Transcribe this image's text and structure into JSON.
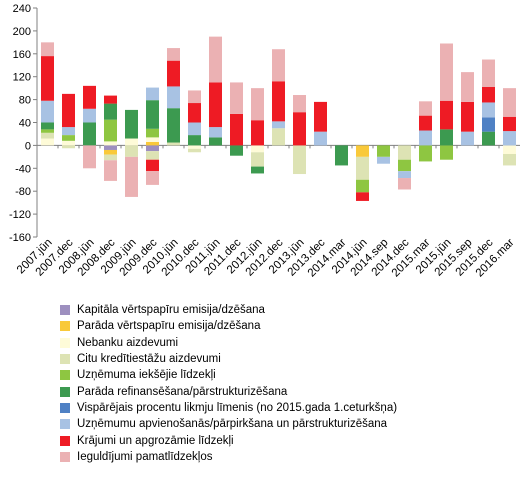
{
  "chart_data": {
    "type": "bar",
    "stacked": true,
    "ylim": [
      -160,
      240
    ],
    "yticks": [
      -160,
      -120,
      -80,
      -40,
      0,
      40,
      80,
      120,
      160,
      200,
      240
    ],
    "grid": false,
    "legend_position": "bottom",
    "categories": [
      "2007.jūn",
      "2007.dec",
      "2008.jūn",
      "2008.dec",
      "2009.jūn",
      "2009.dec",
      "2010.jūn",
      "2010.dec",
      "2011.jūn",
      "2011.dec",
      "2012.jūn",
      "2012.dec",
      "2013.jūn",
      "2013.dec",
      "2014.mar",
      "2014.jūn",
      "2014.sep",
      "2014.dec",
      "2015.mar",
      "2015.jūn",
      "2015.sep",
      "2015.dec",
      "2016.mar"
    ],
    "series": [
      {
        "name": "Kapitāla vērtspapīru emisija/dzēšana",
        "color": "#9d8fbf",
        "values": [
          0,
          0,
          0,
          -8,
          0,
          -10,
          0,
          0,
          0,
          0,
          0,
          0,
          0,
          0,
          0,
          0,
          0,
          0,
          0,
          0,
          0,
          0,
          0
        ]
      },
      {
        "name": "Parāda vērtspapīru emisija/dzēšana",
        "color": "#f9c93a",
        "values": [
          0,
          0,
          0,
          -8,
          0,
          6,
          0,
          0,
          0,
          0,
          0,
          0,
          0,
          0,
          0,
          -20,
          0,
          0,
          0,
          0,
          0,
          0,
          0
        ]
      },
      {
        "name": "Nebanku aizdevumi",
        "color": "#fefbd8",
        "values": [
          12,
          8,
          0,
          7,
          12,
          8,
          0,
          -6,
          0,
          0,
          -12,
          0,
          0,
          0,
          0,
          0,
          0,
          0,
          0,
          0,
          0,
          0,
          -15
        ]
      },
      {
        "name": "Citu kredītiestāžu aizdevumi",
        "color": "#dde3b4",
        "values": [
          10,
          -5,
          0,
          -10,
          -20,
          -15,
          5,
          -6,
          0,
          0,
          -25,
          30,
          -50,
          0,
          0,
          -40,
          0,
          -25,
          0,
          0,
          0,
          0,
          -20
        ]
      },
      {
        "name": "Uzņēmuma iekšējie līdzekļi",
        "color": "#8ec641",
        "values": [
          6,
          10,
          0,
          38,
          0,
          15,
          0,
          0,
          0,
          0,
          0,
          0,
          0,
          0,
          0,
          -22,
          -20,
          -20,
          -28,
          -25,
          0,
          0,
          0
        ]
      },
      {
        "name": "Parāda refinansēšana/pārstrukturizēšana",
        "color": "#3c9a50",
        "values": [
          12,
          0,
          40,
          28,
          50,
          50,
          60,
          18,
          14,
          -18,
          -12,
          0,
          0,
          0,
          -35,
          0,
          0,
          0,
          0,
          28,
          0,
          24,
          0
        ]
      },
      {
        "name": "Vispārējais procentu likmju līmenis (no 2015.gada 1.ceturkšņa)",
        "color": "#4f81c4",
        "values": [
          0,
          0,
          0,
          0,
          0,
          0,
          0,
          0,
          0,
          0,
          0,
          0,
          0,
          0,
          0,
          0,
          0,
          0,
          0,
          0,
          0,
          25,
          0
        ]
      },
      {
        "name": "Uzņēmumu apvienošanās/pārpirkšana un pārstrukturizēšana",
        "color": "#a8c2e3",
        "values": [
          38,
          14,
          24,
          0,
          0,
          22,
          38,
          22,
          18,
          0,
          0,
          12,
          0,
          24,
          0,
          0,
          -12,
          -12,
          26,
          0,
          24,
          26,
          25
        ]
      },
      {
        "name": "Krājumi un apgrozāmie līdzekļi",
        "color": "#ee1b24",
        "values": [
          78,
          58,
          40,
          14,
          0,
          -20,
          45,
          34,
          78,
          55,
          44,
          70,
          58,
          52,
          0,
          -15,
          0,
          0,
          26,
          50,
          52,
          27,
          25
        ]
      },
      {
        "name": "Ieguldījumi pamatlīdzekļos",
        "color": "#ebb1b3",
        "values": [
          24,
          0,
          -40,
          -36,
          -70,
          -24,
          22,
          22,
          80,
          55,
          56,
          56,
          30,
          0,
          0,
          0,
          0,
          -20,
          25,
          100,
          52,
          48,
          50
        ]
      }
    ]
  }
}
